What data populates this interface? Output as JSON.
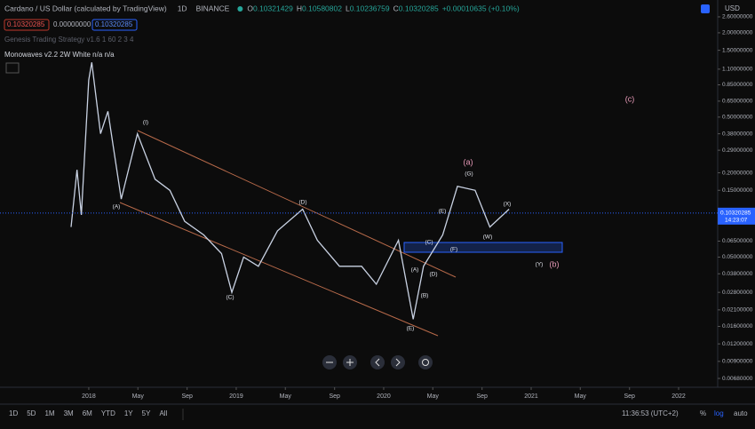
{
  "header": {
    "symbol": "Cardano / US Dollar (calculated by TradingView)",
    "interval": "1D",
    "exchange": "BINANCE",
    "ohlc": [
      {
        "key": "O",
        "value": "0.10321429"
      },
      {
        "key": "H",
        "value": "0.10580802"
      },
      {
        "key": "L",
        "value": "0.10236759"
      },
      {
        "key": "C",
        "value": "0.10320285"
      }
    ],
    "change": "+0.00010635 (+0.10%)",
    "boxes": [
      "0.10320285",
      "0.00000000",
      "0.10320285"
    ],
    "indicator1": "Genesis Trading Strategy v1.6 1 60 2 3 4",
    "indicator2": "Monowaves v2.2 2W White n/a n/a"
  },
  "chart": {
    "type": "line",
    "currency": "USD",
    "log_scale": true,
    "ylim": [
      0.00588,
      3.43
    ],
    "xlim": [
      2017.398,
      2022.265
    ],
    "yticks": [
      {
        "value": 2.6,
        "label": "2.60000000"
      },
      {
        "value": 2.0,
        "label": "2.00000000"
      },
      {
        "value": 1.5,
        "label": "1.50000000"
      },
      {
        "value": 1.1,
        "label": "1.10000000"
      },
      {
        "value": 0.85,
        "label": "0.85000000"
      },
      {
        "value": 0.65,
        "label": "0.65000000"
      },
      {
        "value": 0.5,
        "label": "0.50000000"
      },
      {
        "value": 0.38,
        "label": "0.38000000"
      },
      {
        "value": 0.29,
        "label": "0.29000000"
      },
      {
        "value": 0.2,
        "label": "0.20000000"
      },
      {
        "value": 0.15,
        "label": "0.15000000"
      },
      {
        "value": 0.065,
        "label": "0.06500000"
      },
      {
        "value": 0.05,
        "label": "0.05000000"
      },
      {
        "value": 0.038,
        "label": "0.03800000"
      },
      {
        "value": 0.028,
        "label": "0.02800000"
      },
      {
        "value": 0.021,
        "label": "0.02100000"
      },
      {
        "value": 0.016,
        "label": "0.01600000"
      },
      {
        "value": 0.012,
        "label": "0.01200000"
      },
      {
        "value": 0.009,
        "label": "0.00900000"
      },
      {
        "value": 0.0068,
        "label": "0.00680000"
      }
    ],
    "xticks": [
      {
        "value": 2018,
        "label": "2018"
      },
      {
        "value": 2018.333,
        "label": "May"
      },
      {
        "value": 2018.667,
        "label": "Sep"
      },
      {
        "value": 2019,
        "label": "2019"
      },
      {
        "value": 2019.333,
        "label": "May"
      },
      {
        "value": 2019.667,
        "label": "Sep"
      },
      {
        "value": 2020,
        "label": "2020"
      },
      {
        "value": 2020.333,
        "label": "May"
      },
      {
        "value": 2020.667,
        "label": "Sep"
      },
      {
        "value": 2021,
        "label": "2021"
      },
      {
        "value": 2021.333,
        "label": "May"
      },
      {
        "value": 2021.667,
        "label": "Sep"
      },
      {
        "value": 2022,
        "label": "2022"
      }
    ],
    "price": {
      "color": "#c9d2e3",
      "x": [
        2017.88,
        2017.92,
        2017.95,
        2018.0,
        2018.02,
        2018.08,
        2018.13,
        2018.22,
        2018.33,
        2018.45,
        2018.55,
        2018.65,
        2018.78,
        2018.9,
        2018.97,
        2019.05,
        2019.15,
        2019.28,
        2019.45,
        2019.55,
        2019.7,
        2019.85,
        2019.95,
        2020.1,
        2020.2,
        2020.27,
        2020.4,
        2020.5,
        2020.62,
        2020.72,
        2020.85
      ],
      "values": [
        0.082,
        0.21,
        0.1,
        0.92,
        1.23,
        0.38,
        0.55,
        0.13,
        0.38,
        0.18,
        0.15,
        0.09,
        0.072,
        0.053,
        0.028,
        0.05,
        0.043,
        0.077,
        0.11,
        0.066,
        0.043,
        0.043,
        0.032,
        0.066,
        0.018,
        0.043,
        0.072,
        0.16,
        0.15,
        0.082,
        0.11
      ]
    },
    "last_price": {
      "value": 0.10320285,
      "label": "0.10320285",
      "countdown": "14:23:07"
    },
    "annotations": [
      "(I)",
      "(A)",
      "(D)",
      "(C)",
      "(E)",
      "(A)",
      "(B)",
      "(D)",
      "(C)",
      "(E)",
      "(F)",
      "(G)",
      "(W)",
      "(X)",
      "(Y)",
      "(a)",
      "(b)",
      "(c)"
    ]
  },
  "footer": {
    "ranges": [
      "1D",
      "5D",
      "1M",
      "3M",
      "6M",
      "YTD",
      "1Y",
      "5Y",
      "All"
    ],
    "clock": "11:36:53 (UTC+2)",
    "percent": "%",
    "log": "log",
    "auto": "auto"
  }
}
